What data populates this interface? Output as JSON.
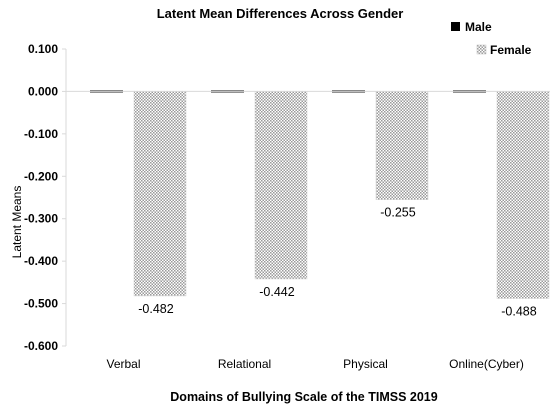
{
  "chart_data": {
    "type": "bar",
    "title": "Latent Mean Differences Across Gender",
    "xlabel": "Domains  of  Bullying Scale of the TIMSS 2019",
    "ylabel": "Latent Means",
    "categories": [
      "Verbal",
      "Relational",
      "Physical",
      "Online(Cyber)"
    ],
    "series": [
      {
        "name": "Male",
        "values": [
          0,
          0,
          0,
          0
        ],
        "color": "#000000",
        "labels": [
          "",
          "",
          "",
          ""
        ]
      },
      {
        "name": "Female",
        "values": [
          -0.482,
          -0.442,
          -0.255,
          -0.488
        ],
        "color": "#c8c8c8",
        "labels": [
          "-0.482",
          "-0.442",
          "-0.255",
          "-0.488"
        ]
      }
    ],
    "ylim": [
      -0.6,
      0.1
    ],
    "yticks": [
      "0.100",
      "0.000",
      "-0.100",
      "-0.200",
      "-0.300",
      "-0.400",
      "-0.500",
      "-0.600"
    ],
    "ytick_values": [
      0.1,
      0.0,
      -0.1,
      -0.2,
      -0.3,
      -0.4,
      -0.5,
      -0.6
    ],
    "grid": false,
    "legend_position": "top-right"
  }
}
